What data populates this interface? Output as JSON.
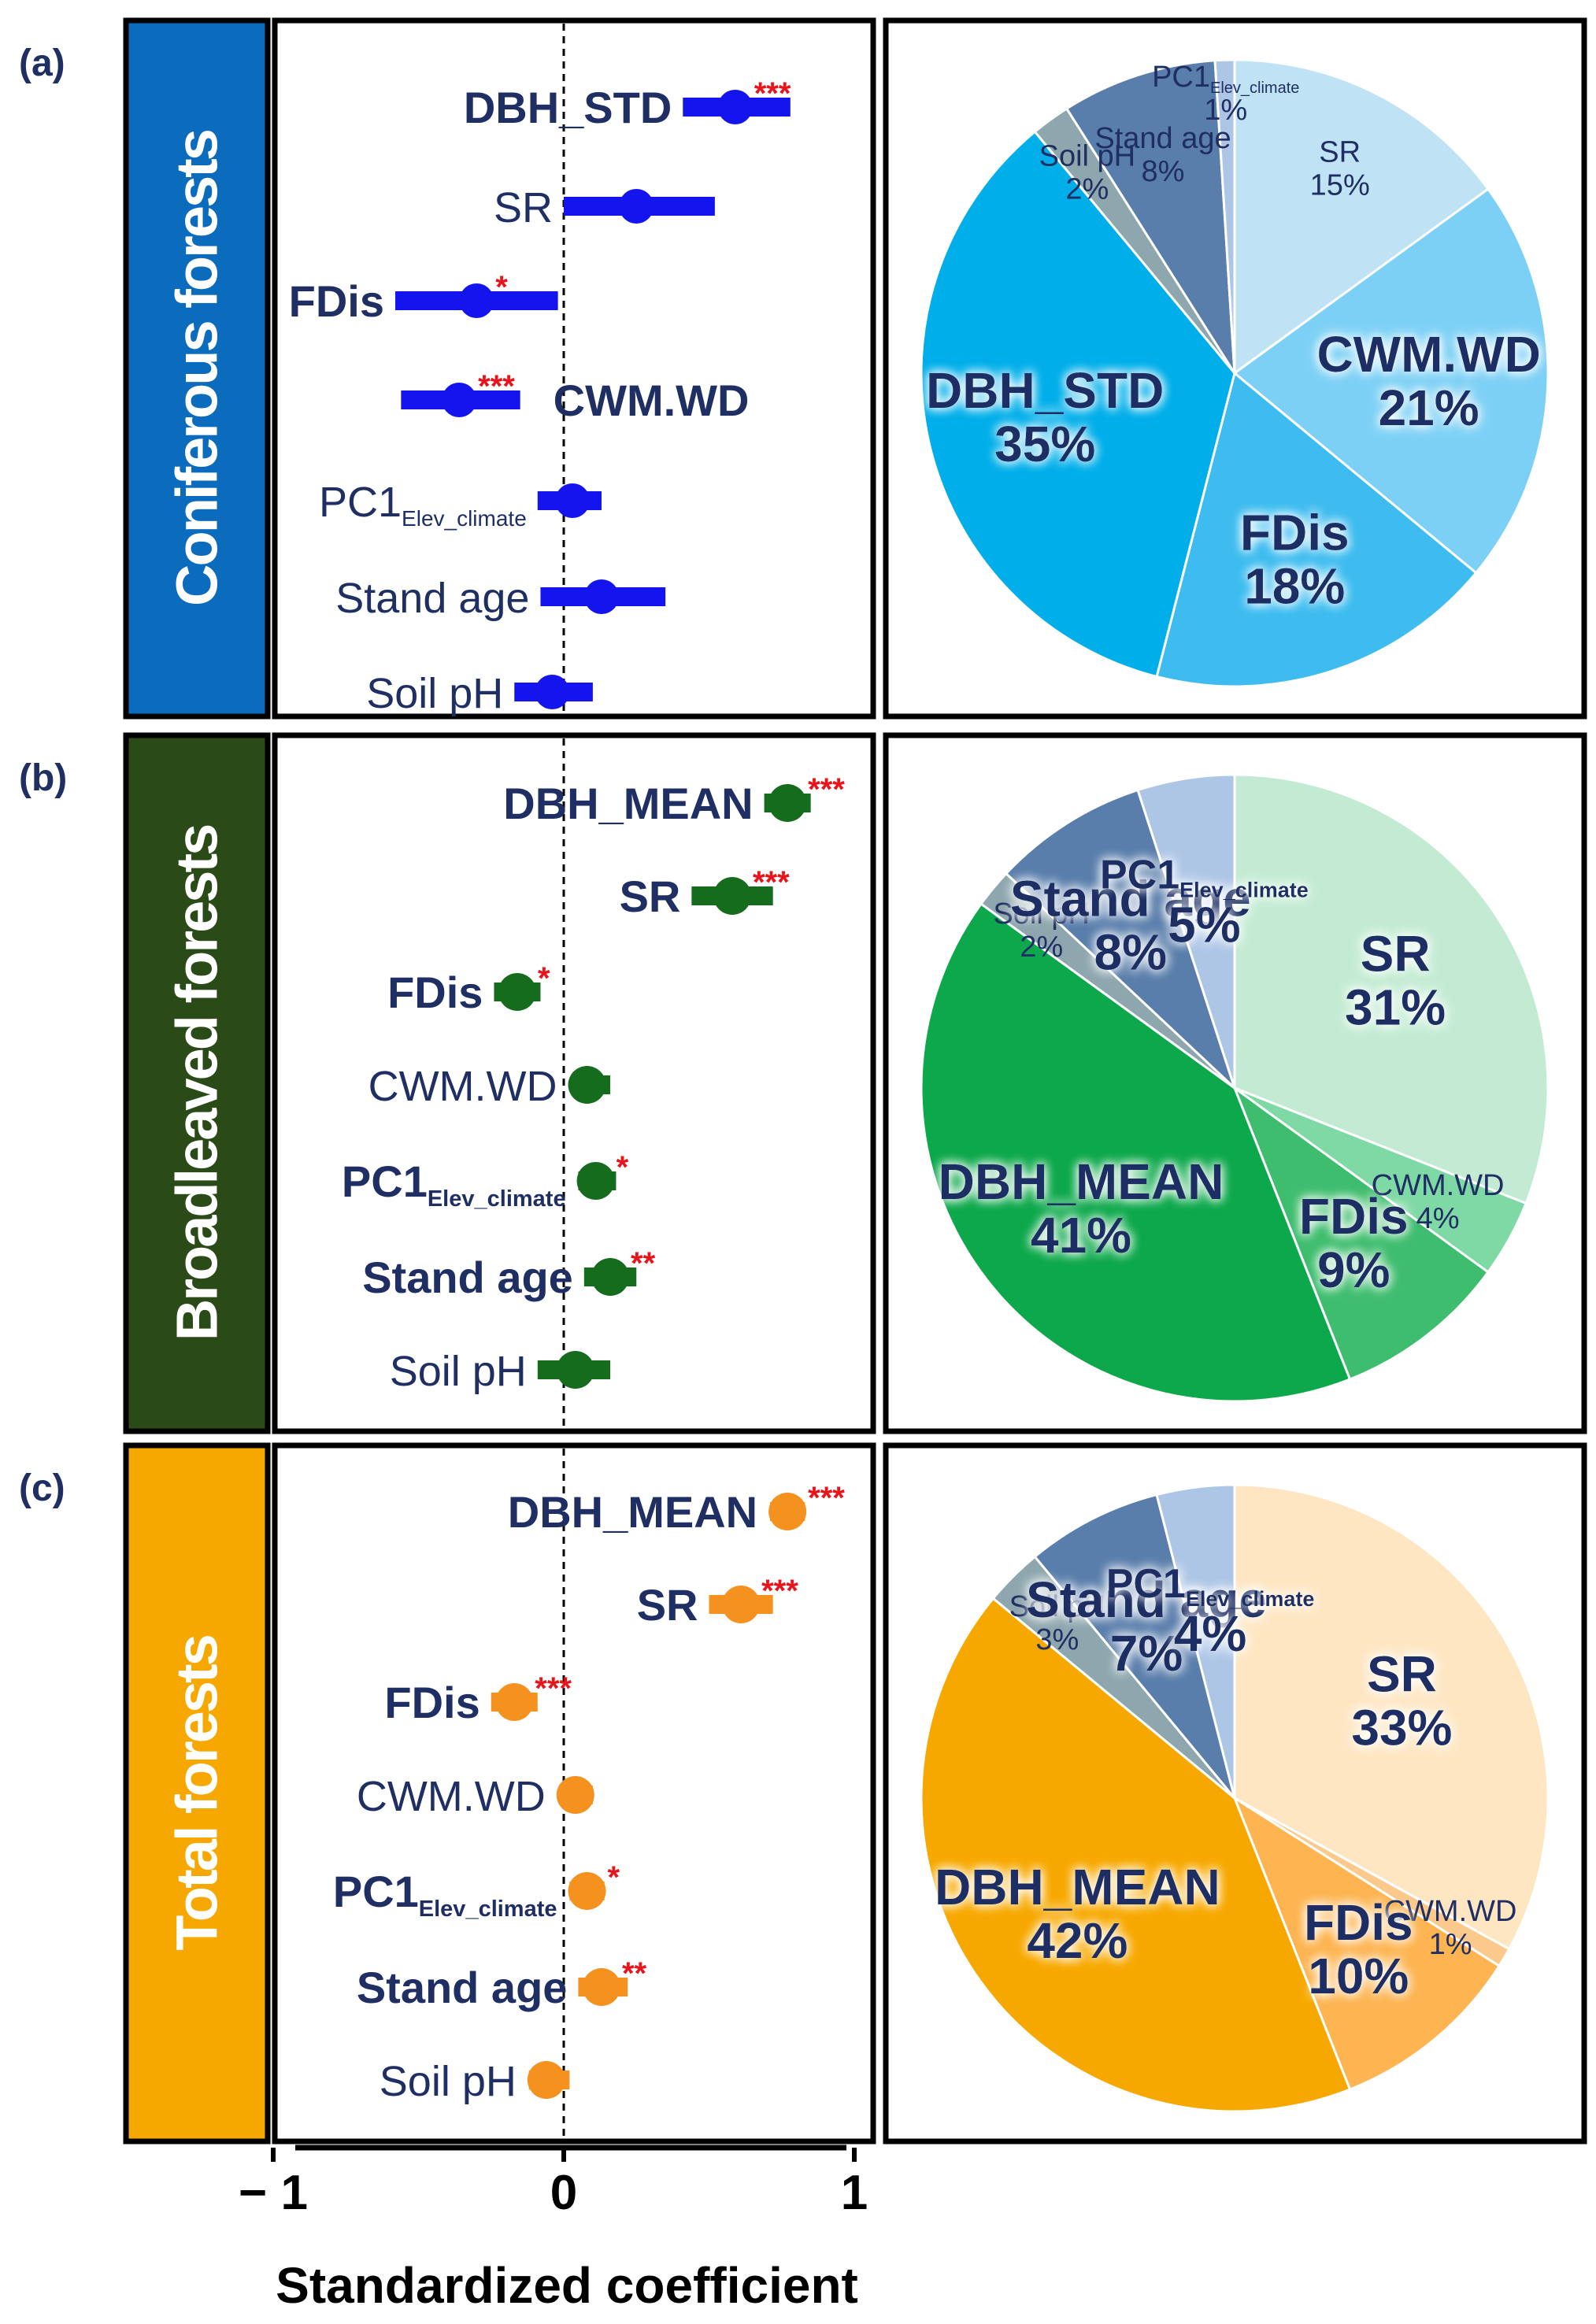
{
  "figure": {
    "x_axis_title": "Standardized coefficient",
    "x_ticks": [
      "− 1",
      "0",
      "1"
    ]
  },
  "colors": {
    "text": "#1f2f63",
    "star": "#e8141c"
  },
  "panels": [
    {
      "label": "(a)",
      "title": "Coniferous forests",
      "band_color": "#0b6bbd",
      "dot_color": "#1414ee",
      "chart_data": [
        {
          "type": "forest-plot",
          "xlabel": "Standardized coefficient",
          "xlim": [
            -1,
            1
          ],
          "rows": [
            {
              "name": "DBH_STD",
              "sub": "",
              "coef": 0.59,
              "lo": 0.41,
              "hi": 0.78,
              "stars": "***",
              "bold": true,
              "label_pos": "left"
            },
            {
              "name": "SR",
              "sub": "",
              "coef": 0.25,
              "lo": 0.0,
              "hi": 0.52,
              "stars": "",
              "bold": false,
              "label_pos": "left"
            },
            {
              "name": "FDis",
              "sub": "",
              "coef": -0.3,
              "lo": -0.58,
              "hi": -0.02,
              "stars": "*",
              "bold": true,
              "label_pos": "left"
            },
            {
              "name": "CWM.WD",
              "sub": "",
              "coef": -0.36,
              "lo": -0.56,
              "hi": -0.15,
              "stars": "***",
              "bold": true,
              "label_pos": "right"
            },
            {
              "name": "PC1",
              "sub": "Elev_climate",
              "coef": 0.03,
              "lo": -0.09,
              "hi": 0.13,
              "stars": "",
              "bold": false,
              "label_pos": "left"
            },
            {
              "name": "Stand age",
              "sub": "",
              "coef": 0.13,
              "lo": -0.08,
              "hi": 0.35,
              "stars": "",
              "bold": false,
              "label_pos": "left"
            },
            {
              "name": "Soil pH",
              "sub": "",
              "coef": -0.04,
              "lo": -0.17,
              "hi": 0.1,
              "stars": "",
              "bold": false,
              "label_pos": "left"
            }
          ]
        },
        {
          "type": "pie",
          "slices": [
            {
              "name": "SR",
              "sub": "",
              "pct": 15,
              "value": "15%",
              "color": "#bfe3f4",
              "big": false
            },
            {
              "name": "CWM.WD",
              "sub": "",
              "pct": 21,
              "value": "21%",
              "color": "#7dd0f5",
              "big": true
            },
            {
              "name": "FDis",
              "sub": "",
              "pct": 18,
              "value": "18%",
              "color": "#3ebcef",
              "big": true
            },
            {
              "name": "DBH_STD",
              "sub": "",
              "pct": 35,
              "value": "35%",
              "color": "#00aee9",
              "big": true
            },
            {
              "name": "Soil pH",
              "sub": "",
              "pct": 2,
              "value": "2%",
              "color": "#8ea7ae",
              "big": false
            },
            {
              "name": "Stand age",
              "sub": "",
              "pct": 8,
              "value": "8%",
              "color": "#5a7eab",
              "big": false
            },
            {
              "name": "PC1",
              "sub": "Elev_climate",
              "pct": 1,
              "value": "1%",
              "color": "#aec6e6",
              "big": false
            }
          ]
        }
      ]
    },
    {
      "label": "(b)",
      "title": "Broadleaved forests",
      "band_color": "#2a4a17",
      "dot_color": "#156c1c",
      "chart_data": [
        {
          "type": "forest-plot",
          "xlabel": "Standardized coefficient",
          "xlim": [
            -1,
            1
          ],
          "rows": [
            {
              "name": "DBH_MEAN",
              "sub": "",
              "coef": 0.77,
              "lo": 0.69,
              "hi": 0.85,
              "stars": "***",
              "bold": true,
              "label_pos": "left"
            },
            {
              "name": "SR",
              "sub": "",
              "coef": 0.58,
              "lo": 0.44,
              "hi": 0.72,
              "stars": "***",
              "bold": true,
              "label_pos": "left"
            },
            {
              "name": "FDis",
              "sub": "",
              "coef": -0.16,
              "lo": -0.24,
              "hi": -0.08,
              "stars": "*",
              "bold": true,
              "label_pos": "left"
            },
            {
              "name": "CWM.WD",
              "sub": "",
              "coef": 0.08,
              "lo": 0.03,
              "hi": 0.16,
              "stars": "",
              "bold": false,
              "label_pos": "left"
            },
            {
              "name": "PC1",
              "sub": "Elev_climate",
              "coef": 0.11,
              "lo": 0.05,
              "hi": 0.18,
              "stars": "*",
              "bold": true,
              "label_pos": "left"
            },
            {
              "name": "Stand age",
              "sub": "",
              "coef": 0.16,
              "lo": 0.07,
              "hi": 0.25,
              "stars": "**",
              "bold": true,
              "label_pos": "left"
            },
            {
              "name": "Soil pH",
              "sub": "",
              "coef": 0.04,
              "lo": -0.09,
              "hi": 0.16,
              "stars": "",
              "bold": false,
              "label_pos": "left"
            }
          ]
        },
        {
          "type": "pie",
          "slices": [
            {
              "name": "SR",
              "sub": "",
              "pct": 31,
              "value": "31%",
              "color": "#c3ebd3",
              "big": true
            },
            {
              "name": "CWM.WD",
              "sub": "",
              "pct": 4,
              "value": "4%",
              "color": "#7fd9a4",
              "big": false
            },
            {
              "name": "FDis",
              "sub": "",
              "pct": 9,
              "value": "9%",
              "color": "#3fbd6e",
              "big": true
            },
            {
              "name": "DBH_MEAN",
              "sub": "",
              "pct": 41,
              "value": "41%",
              "color": "#0da84b",
              "big": true
            },
            {
              "name": "Soil pH",
              "sub": "",
              "pct": 2,
              "value": "2%",
              "color": "#8ea7ae",
              "big": false
            },
            {
              "name": "Stand age",
              "sub": "",
              "pct": 8,
              "value": "8%",
              "color": "#5a7eab",
              "big": true
            },
            {
              "name": "PC1",
              "sub": "Elev_climate",
              "pct": 5,
              "value": "5%",
              "color": "#aec6e6",
              "big": true
            }
          ]
        }
      ]
    },
    {
      "label": "(c)",
      "title": "Total forests",
      "band_color": "#f7a800",
      "dot_color": "#f5911e",
      "chart_data": [
        {
          "type": "forest-plot",
          "xlabel": "Standardized coefficient",
          "xlim": [
            -1,
            1
          ],
          "rows": [
            {
              "name": "DBH_MEAN",
              "sub": "",
              "coef": 0.77,
              "lo": 0.71,
              "hi": 0.83,
              "stars": "***",
              "bold": true,
              "label_pos": "left"
            },
            {
              "name": "SR",
              "sub": "",
              "coef": 0.61,
              "lo": 0.5,
              "hi": 0.72,
              "stars": "***",
              "bold": true,
              "label_pos": "left"
            },
            {
              "name": "FDis",
              "sub": "",
              "coef": -0.17,
              "lo": -0.25,
              "hi": -0.09,
              "stars": "***",
              "bold": true,
              "label_pos": "left"
            },
            {
              "name": "CWM.WD",
              "sub": "",
              "coef": 0.04,
              "lo": -0.01,
              "hi": 0.1,
              "stars": "",
              "bold": false,
              "label_pos": "left"
            },
            {
              "name": "PC1",
              "sub": "Elev_climate",
              "coef": 0.08,
              "lo": 0.02,
              "hi": 0.14,
              "stars": "*",
              "bold": true,
              "label_pos": "left"
            },
            {
              "name": "Stand age",
              "sub": "",
              "coef": 0.13,
              "lo": 0.05,
              "hi": 0.22,
              "stars": "**",
              "bold": true,
              "label_pos": "left"
            },
            {
              "name": "Soil pH",
              "sub": "",
              "coef": -0.06,
              "lo": -0.12,
              "hi": 0.02,
              "stars": "",
              "bold": false,
              "label_pos": "left"
            }
          ]
        },
        {
          "type": "pie",
          "slices": [
            {
              "name": "SR",
              "sub": "",
              "pct": 33,
              "value": "33%",
              "color": "#fee6c3",
              "big": true
            },
            {
              "name": "CWM.WD",
              "sub": "",
              "pct": 1,
              "value": "1%",
              "color": "#fcc98c",
              "big": false
            },
            {
              "name": "FDis",
              "sub": "",
              "pct": 10,
              "value": "10%",
              "color": "#fdb451",
              "big": true
            },
            {
              "name": "DBH_MEAN",
              "sub": "",
              "pct": 42,
              "value": "42%",
              "color": "#f7a800",
              "big": true
            },
            {
              "name": "Soil pH",
              "sub": "",
              "pct": 3,
              "value": "3%",
              "color": "#8ea7ae",
              "big": false
            },
            {
              "name": "Stand age",
              "sub": "",
              "pct": 7,
              "value": "7%",
              "color": "#5a7eab",
              "big": true
            },
            {
              "name": "PC1",
              "sub": "Elev_climate",
              "pct": 4,
              "value": "4%",
              "color": "#aec6e6",
              "big": true
            }
          ]
        }
      ]
    }
  ]
}
